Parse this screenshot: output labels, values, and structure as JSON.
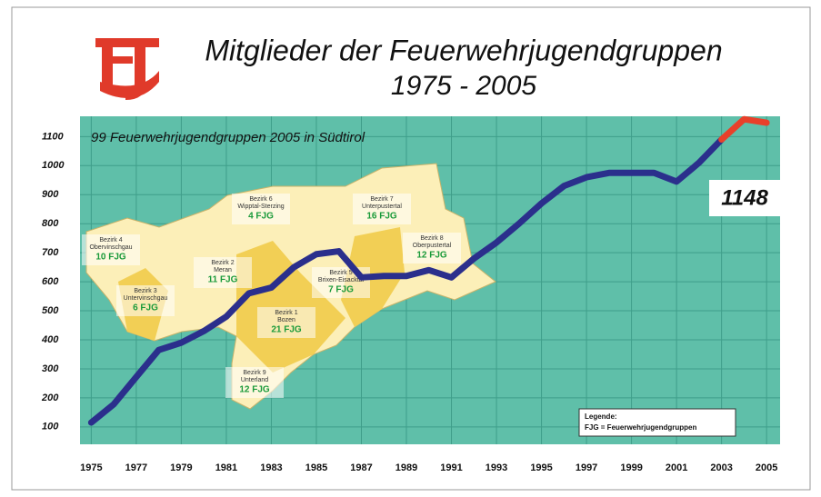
{
  "chart_data": {
    "type": "line",
    "title": "Mitglieder der Feuerwehrjugendgruppen",
    "subtitle": "1975 - 2005",
    "annotation_text": "99 Feuerwehrjugendgruppen 2005 in Südtirol",
    "callout": "1148",
    "x": [
      1975,
      1976,
      1977,
      1978,
      1979,
      1980,
      1981,
      1982,
      1983,
      1984,
      1985,
      1986,
      1987,
      1988,
      1989,
      1990,
      1991,
      1992,
      1993,
      1994,
      1995,
      1996,
      1997,
      1998,
      1999,
      2000,
      2001,
      2002,
      2003,
      2004,
      2005
    ],
    "series": [
      {
        "color": "#2b2f8c",
        "values": [
          115,
          178,
          272,
          365,
          390,
          430,
          480,
          560,
          580,
          650,
          695,
          705,
          615,
          620,
          620,
          640,
          615,
          680,
          735,
          800,
          870,
          930,
          960,
          975,
          975,
          975,
          945,
          1010,
          1090,
          null,
          null
        ]
      },
      {
        "color": "#e8402a",
        "values": [
          null,
          null,
          null,
          null,
          null,
          null,
          null,
          null,
          null,
          null,
          null,
          null,
          null,
          null,
          null,
          null,
          null,
          null,
          null,
          null,
          null,
          null,
          null,
          null,
          null,
          null,
          null,
          null,
          1090,
          1160,
          1148
        ]
      }
    ],
    "xlim": [
      1974.5,
      2005.6
    ],
    "xticks": [
      1975,
      1977,
      1979,
      1981,
      1983,
      1985,
      1987,
      1989,
      1991,
      1993,
      1995,
      1997,
      1999,
      2001,
      2003,
      2005
    ],
    "ylim": [
      40,
      1170
    ],
    "yticks": [
      100,
      200,
      300,
      400,
      500,
      600,
      700,
      800,
      900,
      1000,
      1100
    ],
    "grid": true,
    "legend_title": "Legende:",
    "legend_text": "FJG = Feuerwehrjugendgruppen",
    "map_labels": [
      {
        "district": "Bezirk 4",
        "area": "Obervinschgau",
        "count": "10 FJG"
      },
      {
        "district": "Bezirk 3",
        "area": "Untervinschgau",
        "count": "6 FJG"
      },
      {
        "district": "Bezirk 2",
        "area": "Meran",
        "count": "11 FJG"
      },
      {
        "district": "Bezirk 6",
        "area": "Wipptal-Sterzing",
        "count": "4 FJG"
      },
      {
        "district": "Bezirk 7",
        "area": "Unterpustertal",
        "count": "16 FJG"
      },
      {
        "district": "Bezirk 8",
        "area": "Oberpustertal",
        "count": "12 FJG"
      },
      {
        "district": "Bezirk 5",
        "area": "Brixen-Eisacktal",
        "count": "7 FJG"
      },
      {
        "district": "Bezirk 1",
        "area": "Bozen",
        "count": "21 FJG"
      },
      {
        "district": "Bezirk 9",
        "area": "Unterland",
        "count": "12 FJG"
      }
    ]
  }
}
